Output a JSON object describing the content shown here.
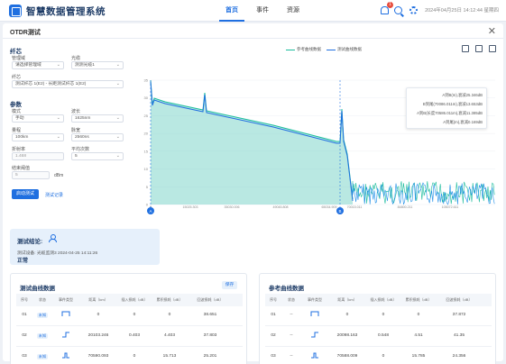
{
  "app": {
    "title": "智慧数据管理系统",
    "nav": [
      "首页",
      "事件",
      "资源"
    ],
    "notification_count": "1",
    "datetime": "2024年04月25日 14:12:44 星期四"
  },
  "panel": {
    "title": "OTDR测试",
    "close_label": "✕"
  },
  "form": {
    "fiber_section": "纤芯",
    "region_label": "管理域",
    "region_value": "请选择管理域",
    "optical_label": "光缆",
    "optical_value": "测测光缆1",
    "fiber_label": "纤芯",
    "fiber_value": "测试纤芯 1(E2) - 长距测试纤芯 1(E2)",
    "params_section": "参数",
    "mode_label": "模式",
    "mode_value": "手动",
    "wavelength_label": "波长",
    "wavelength_value": "1625nm",
    "range_label": "量程",
    "range_value": "100km",
    "pulse_label": "脉宽",
    "pulse_value": "2560ns",
    "refraction_label": "折射率",
    "refraction_value": "1.468",
    "avg_label": "平均次数",
    "avg_value": "5",
    "end_threshold_label": "结束阈值",
    "end_threshold_value": "5",
    "end_threshold_unit": "dBm",
    "start_button": "启动测试",
    "record_link": "测试记录"
  },
  "chart_data": {
    "type": "line",
    "legend": [
      "参考曲线数据",
      "测试曲线数据"
    ],
    "y_ticks": [
      "35",
      "30",
      "25",
      "20",
      "15",
      "10",
      "5",
      "0"
    ],
    "x_ticks": [
      "0",
      "15025.303",
      "35030.006",
      "49045.808",
      "65034.909",
      "70015.011",
      "84800.211",
      "105072.611"
    ],
    "ylim": [
      0,
      35
    ],
    "colors": {
      "reference": "#1abc9c",
      "test": "#1f6fe0"
    },
    "info": [
      "A到B(m),衰减25.346dB",
      "B到尾(70086.011m),衰减13.653dB",
      "A到B(长度70586.011m),衰减11.385dB",
      "A到尾(m),衰减0.169dB"
    ],
    "markers": [
      "A",
      "B"
    ]
  },
  "result": {
    "title": "测试结论:",
    "detail": "测试设备: 光缆监测3   2024-04-25 14:11:26",
    "status": "正常"
  },
  "test_table": {
    "title": "测试曲线数据",
    "button": "保存",
    "headers": [
      "序号",
      "状态",
      "事件类型",
      "距离（km）",
      "插入损耗（dB）",
      "累积损耗（dB）",
      "回波损耗（dB）"
    ],
    "rows": [
      [
        "01",
        "未知",
        "start",
        "0",
        "0",
        "0",
        "38.651"
      ],
      [
        "02",
        "未知",
        "step",
        "20103.246",
        "0.403",
        "4.403",
        "37.803"
      ],
      [
        "03",
        "未知",
        "end",
        "70590.093",
        "0",
        "15.713",
        "25.201"
      ]
    ]
  },
  "ref_table": {
    "title": "参考曲线数据",
    "headers": [
      "序号",
      "状态",
      "事件类型",
      "距离（km）",
      "插入损耗（dB）",
      "累积损耗（dB）",
      "回波损耗（dB）"
    ],
    "rows": [
      [
        "01",
        "--",
        "start",
        "0",
        "0",
        "0",
        "37.872"
      ],
      [
        "02",
        "--",
        "step",
        "20098.163",
        "0.548",
        "4.51",
        "41.35"
      ],
      [
        "03",
        "--",
        "end",
        "70588.009",
        "0",
        "15.785",
        "24.356"
      ]
    ]
  }
}
